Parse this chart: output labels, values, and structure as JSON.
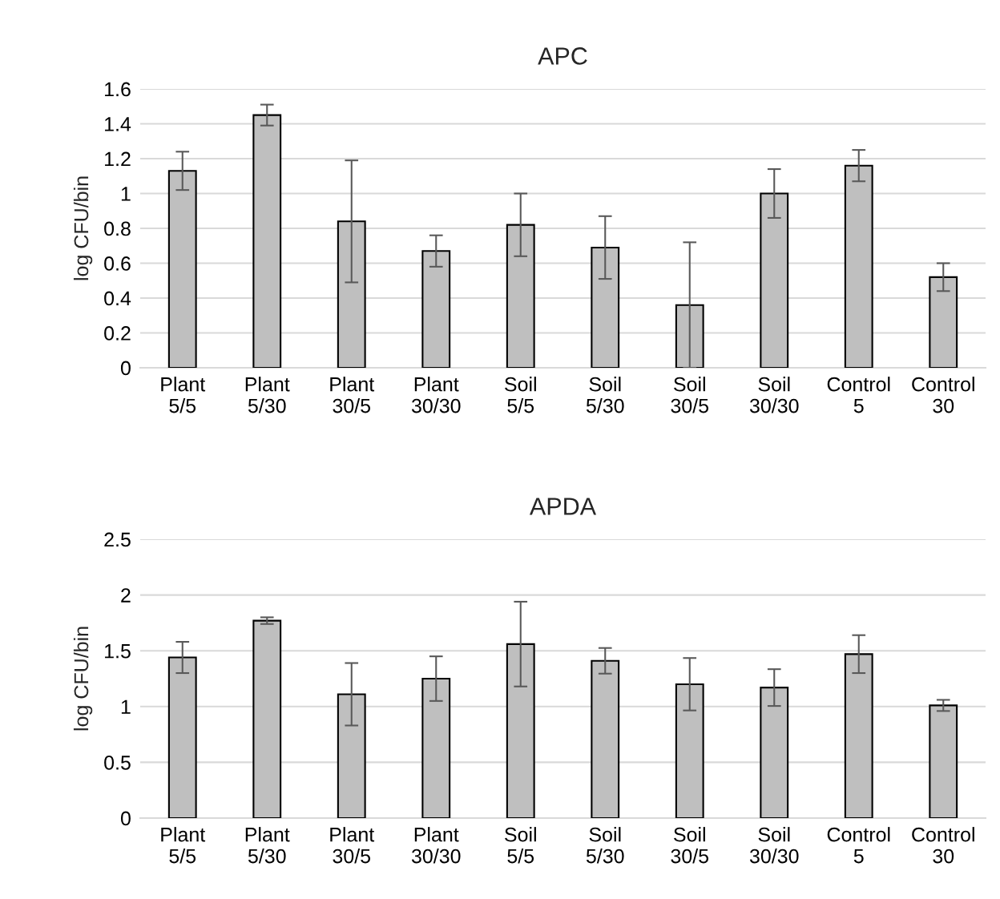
{
  "chart_data": [
    {
      "type": "bar",
      "title": "APC",
      "ylabel": "log CFU/bin",
      "categories": [
        "Plant 5/5",
        "Plant 5/30",
        "Plant 30/5",
        "Plant 30/30",
        "Soil 5/5",
        "Soil 5/30",
        "Soil 30/5",
        "Soil 30/30",
        "Control 5",
        "Control 30"
      ],
      "values": [
        1.13,
        1.45,
        0.84,
        0.67,
        0.82,
        0.69,
        0.36,
        1.0,
        1.16,
        0.52
      ],
      "errors": [
        0.11,
        0.06,
        0.35,
        0.09,
        0.18,
        0.18,
        0.36,
        0.14,
        0.09,
        0.08
      ],
      "color": "#bfbfbf",
      "ylim": [
        0,
        1.6
      ],
      "yticks": [
        0,
        0.2,
        0.4,
        0.6,
        0.8,
        1,
        1.2,
        1.4,
        1.6
      ],
      "grid": "y"
    },
    {
      "type": "bar",
      "title": "APDA",
      "ylabel": "log CFU/bin",
      "categories": [
        "Plant 5/5",
        "Plant 5/30",
        "Plant 30/5",
        "Plant 30/30",
        "Soil 5/5",
        "Soil 5/30",
        "Soil 30/5",
        "Soil 30/30",
        "Control 5",
        "Control 30"
      ],
      "values": [
        1.44,
        1.77,
        1.11,
        1.25,
        1.56,
        1.41,
        1.2,
        1.17,
        1.47,
        1.01
      ],
      "errors": [
        0.14,
        0.03,
        0.28,
        0.2,
        0.38,
        0.115,
        0.235,
        0.165,
        0.17,
        0.05
      ],
      "color": "#bfbfbf",
      "ylim": [
        0,
        2.5
      ],
      "yticks": [
        0,
        0.5,
        1,
        1.5,
        2,
        2.5
      ],
      "grid": "y"
    }
  ]
}
